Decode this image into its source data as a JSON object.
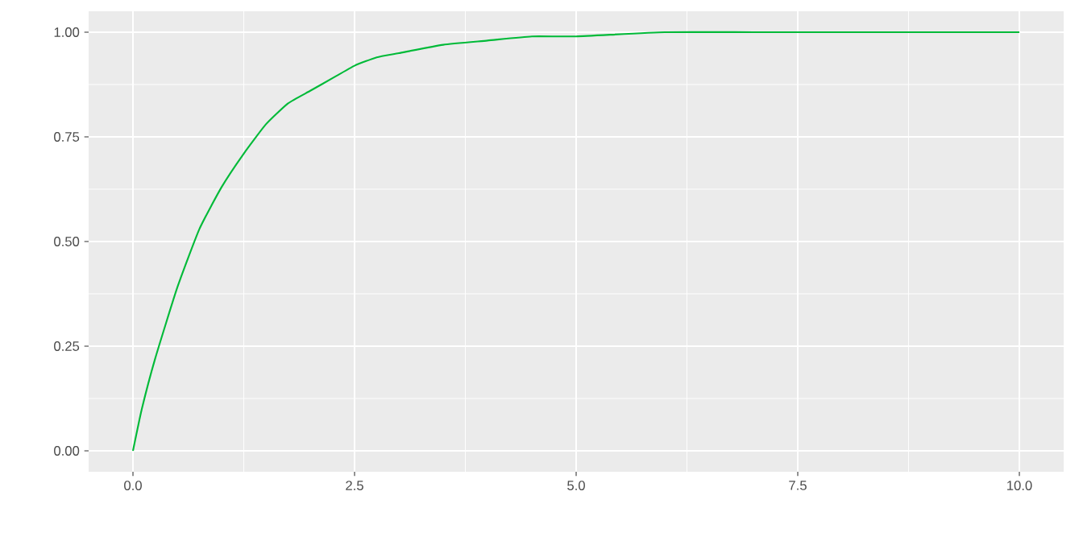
{
  "chart_data": {
    "type": "line",
    "x": [
      0,
      0.1,
      0.25,
      0.5,
      0.75,
      1,
      1.25,
      1.5,
      1.75,
      2,
      2.25,
      2.5,
      2.75,
      3,
      3.5,
      4,
      4.5,
      5,
      6,
      7,
      8,
      9,
      10
    ],
    "series": [
      {
        "color": "#00ba38",
        "values": [
          0,
          0.1,
          0.22,
          0.39,
          0.53,
          0.63,
          0.71,
          0.78,
          0.83,
          0.86,
          0.89,
          0.92,
          0.94,
          0.95,
          0.97,
          0.98,
          0.99,
          0.99,
          1.0,
          1.0,
          1.0,
          1.0,
          1.0
        ]
      }
    ],
    "xlim": [
      -0.5,
      10.5
    ],
    "ylim": [
      -0.05,
      1.05
    ],
    "xticks": [
      {
        "value": 0,
        "label": "0.0"
      },
      {
        "value": 2.5,
        "label": "2.5"
      },
      {
        "value": 5,
        "label": "5.0"
      },
      {
        "value": 7.5,
        "label": "7.5"
      },
      {
        "value": 10,
        "label": "10.0"
      }
    ],
    "yticks": [
      {
        "value": 0,
        "label": "0.00"
      },
      {
        "value": 0.25,
        "label": "0.25"
      },
      {
        "value": 0.5,
        "label": "0.50"
      },
      {
        "value": 0.75,
        "label": "0.75"
      },
      {
        "value": 1,
        "label": "1.00"
      }
    ],
    "grid": true
  }
}
